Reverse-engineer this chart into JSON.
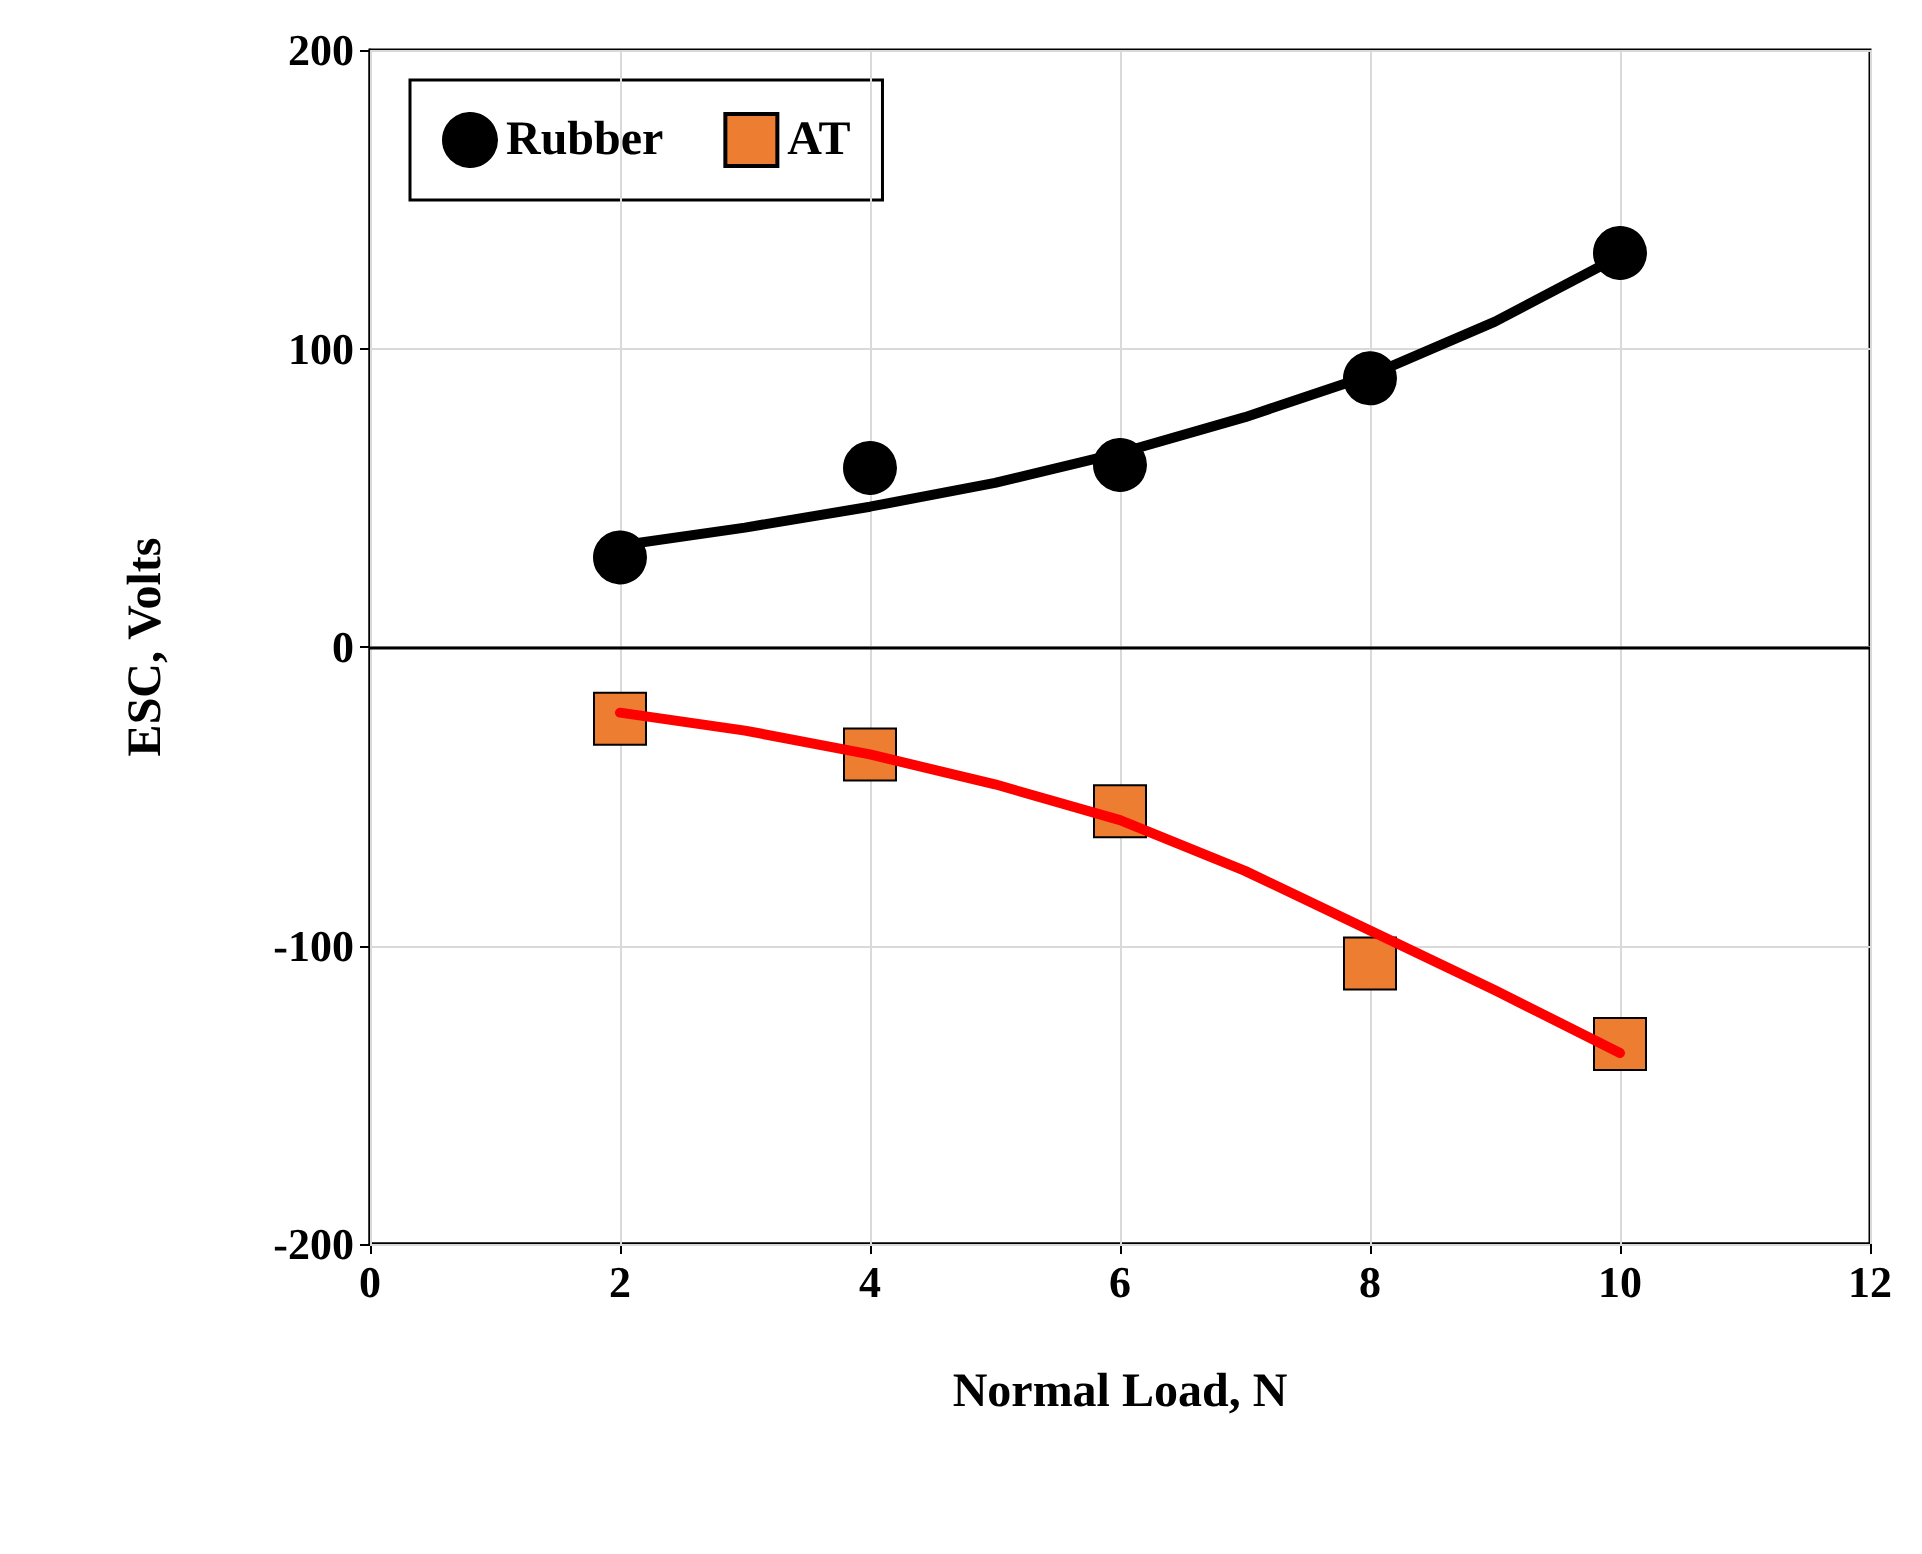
{
  "chart_data": {
    "type": "scatter",
    "xlabel": "Normal Load, N",
    "ylabel": "ESC, Volts",
    "xlim": [
      0,
      12
    ],
    "xticks": [
      0,
      2,
      4,
      6,
      8,
      10,
      12
    ],
    "ylim": [
      -200,
      200
    ],
    "yticks": [
      -200,
      -100,
      0,
      100,
      200
    ],
    "grid": true,
    "legend": "top left",
    "ref_lines": [
      {
        "axis": "y",
        "value": 0,
        "color": "#000000"
      }
    ],
    "series": [
      {
        "name": "Rubber",
        "marker": "circle",
        "color": "#000000",
        "x": [
          2,
          4,
          6,
          8,
          10
        ],
        "values": [
          30,
          60,
          61,
          90,
          132
        ]
      },
      {
        "name": "AT",
        "marker": "square",
        "color": "#ed7d31",
        "x": [
          2,
          4,
          6,
          8,
          10
        ],
        "values": [
          -24,
          -36,
          -55,
          -106,
          -133
        ]
      },
      {
        "type": "line",
        "marker": "none",
        "line_style": "solid",
        "color": "#000000",
        "x": [
          2,
          3,
          4,
          5,
          6,
          7,
          8,
          9,
          10
        ],
        "values": [
          34,
          40,
          47,
          55,
          65,
          77,
          91,
          109,
          131
        ]
      },
      {
        "type": "line",
        "marker": "none",
        "line_style": "solid",
        "color": "#ff0000",
        "x": [
          2,
          3,
          4,
          5,
          6,
          7,
          8,
          9,
          10
        ],
        "values": [
          -22,
          -28,
          -36,
          -46,
          -58,
          -75,
          -95,
          -115,
          -136
        ]
      }
    ]
  }
}
